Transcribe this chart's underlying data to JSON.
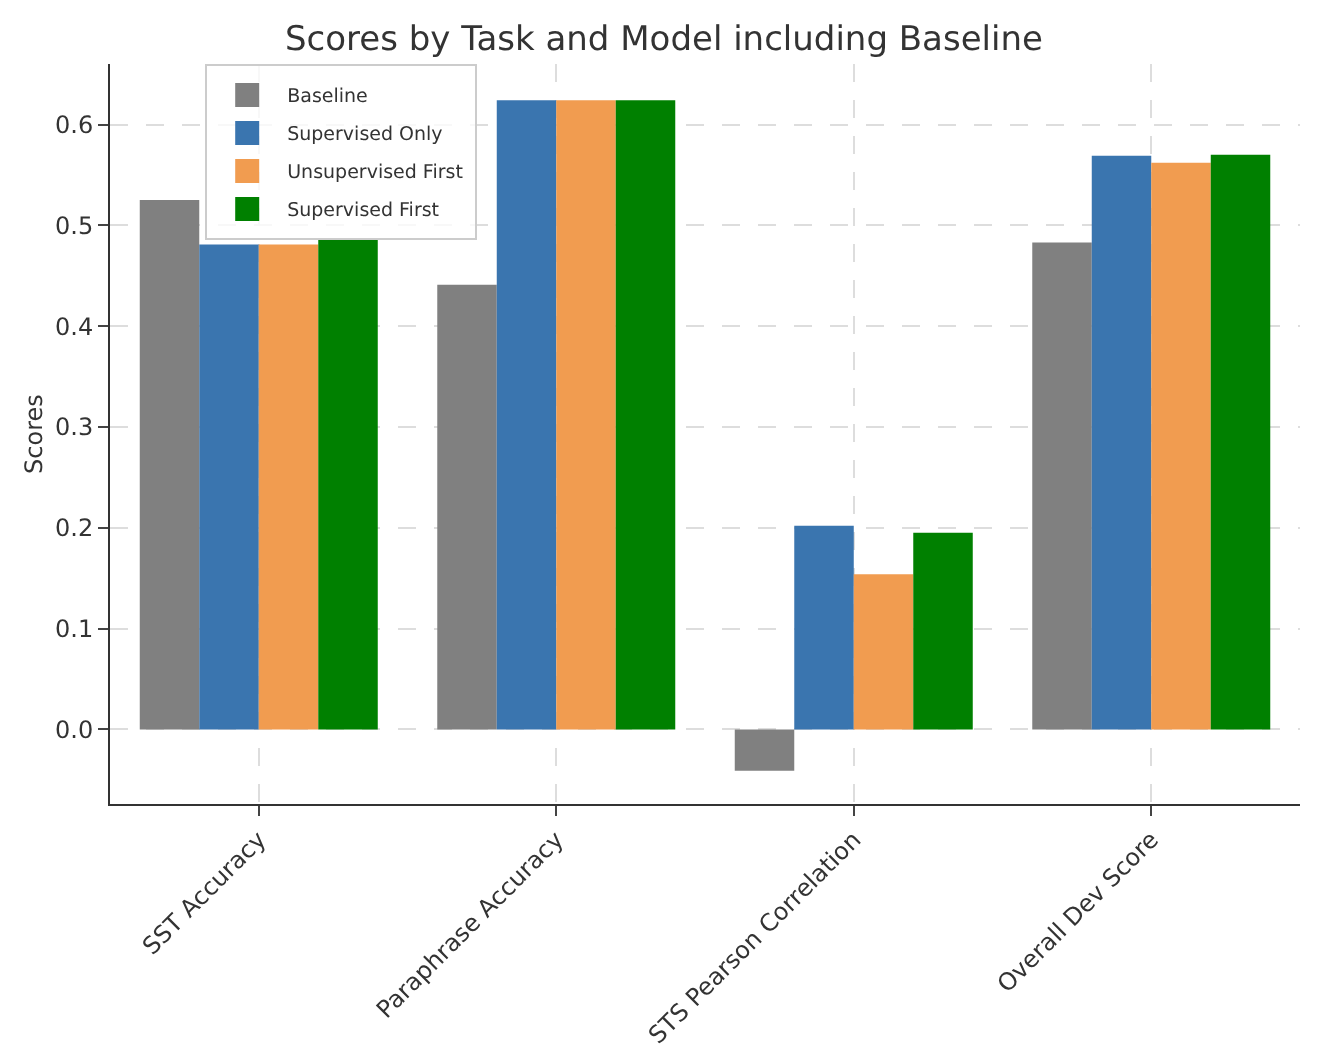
{
  "chart_data": {
    "type": "bar",
    "title": "Scores by Task and Model including Baseline",
    "ylabel": "Scores",
    "categories": [
      "SST Accuracy",
      "Paraphrase Accuracy",
      "STS Pearson Correlation",
      "Overall Dev Score"
    ],
    "series": [
      {
        "name": "Baseline",
        "color": "#808080",
        "values": [
          0.525,
          0.441,
          -0.041,
          0.483
        ]
      },
      {
        "name": "Supervised Only",
        "color": "#3a75af",
        "values": [
          0.481,
          0.624,
          0.202,
          0.569
        ]
      },
      {
        "name": "Unsupervised First",
        "color": "#f19c50",
        "values": [
          0.481,
          0.624,
          0.154,
          0.562
        ]
      },
      {
        "name": "Supervised First",
        "color": "#008000",
        "values": [
          0.486,
          0.624,
          0.195,
          0.57
        ]
      }
    ],
    "ylim": [
      -0.074,
      0.66
    ],
    "yticks": [
      {
        "value": 0,
        "label": "0.0"
      },
      0.1,
      0.2,
      0.3,
      0.4,
      0.5,
      0.6
    ],
    "grid": true,
    "legend": "top left"
  }
}
